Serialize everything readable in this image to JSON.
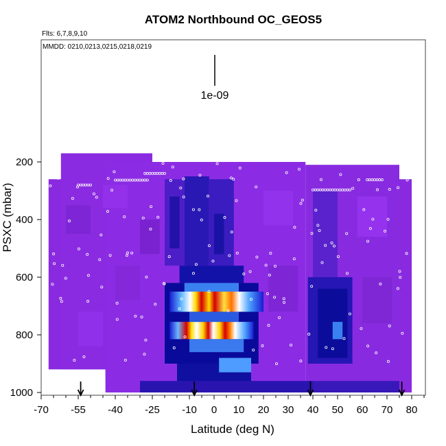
{
  "chart_data": {
    "type": "heatmap",
    "title": "ATOM2 Northbound OC_GEOS5",
    "flights_note": "Flts: 6,7,8,9,10",
    "dates_note": "MMDD: 0210,0213,0215,0218,0219",
    "scale_label": "1e-09",
    "xlabel": "Latitude (deg N)",
    "ylabel": "PSXC (mbar)",
    "xlim": [
      -70,
      85
    ],
    "ylim": [
      1000,
      0
    ],
    "x_ticks": [
      -70,
      -55,
      -40,
      -25,
      -10,
      0,
      10,
      20,
      30,
      40,
      50,
      60,
      70,
      80
    ],
    "x_tick_labels": [
      "-70",
      "-55",
      "-40",
      "-25",
      "-10",
      "0",
      "10",
      "20",
      "30",
      "40",
      "50",
      "60",
      "70",
      "80"
    ],
    "x_minor_ticks": [
      -65,
      -60,
      -50,
      -45,
      -35,
      -30,
      -20,
      -15,
      -5,
      5,
      15,
      25,
      35,
      45,
      55,
      65,
      75,
      85
    ],
    "y_ticks": [
      200,
      400,
      600,
      800,
      1000
    ],
    "y_tick_labels": [
      "200",
      "400",
      "600",
      "800",
      "1000"
    ],
    "grid": false,
    "arrows_at_latitude": [
      -54,
      -8,
      39,
      76
    ],
    "colors": {
      "background_violet": "#8a2be2",
      "mid_blue": "#2222c8",
      "dark_blue": "#00008b",
      "light_blue": "#4aa0ff",
      "cyan": "#c8f0ff",
      "yellow": "#ffd800",
      "orange": "#ff6a00",
      "red": "#d40000"
    },
    "hotspots": [
      {
        "lat": -3,
        "pressure": 680,
        "level": "max"
      },
      {
        "lat": 8,
        "pressure": 680,
        "level": "high"
      },
      {
        "lat": -4,
        "pressure": 780,
        "level": "max"
      },
      {
        "lat": 8,
        "pressure": 780,
        "level": "max"
      },
      {
        "lat": 50,
        "pressure": 780,
        "level": "moderate"
      }
    ],
    "sample_track_latitudes": [
      -65,
      -60,
      -55,
      -50,
      -45,
      -40,
      -35,
      -30,
      -25,
      -20,
      -15,
      -10,
      -5,
      0,
      5,
      10,
      15,
      20,
      25,
      30,
      35,
      40,
      45,
      50,
      55,
      60,
      65,
      70,
      75,
      80
    ]
  }
}
